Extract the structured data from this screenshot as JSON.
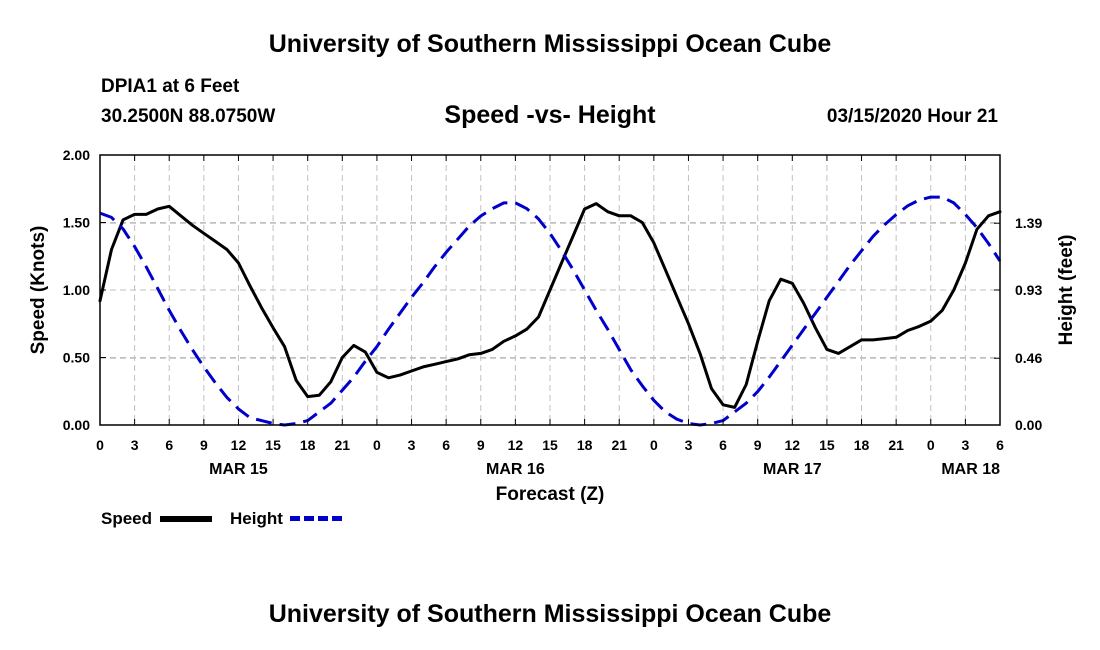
{
  "header": {
    "title": "University of Southern Mississippi Ocean Cube",
    "station": "DPIA1 at 6 Feet",
    "coords": "30.2500N 88.0750W",
    "subtitle": "Speed -vs- Height",
    "datetime": "03/15/2020 Hour 21"
  },
  "footer": {
    "title": "University of Southern Mississippi Ocean Cube"
  },
  "legend": {
    "speed_label": "Speed",
    "height_label": "Height",
    "speed_color": "#000000",
    "height_color": "#0000cc"
  },
  "chart_data": {
    "type": "line",
    "title": "Speed -vs- Height",
    "xlabel": "Forecast (Z)",
    "ylabel": "Speed (Knots)",
    "ylabel_right": "Height (feet)",
    "x_start_hour": 0,
    "x_end_hour": 78,
    "ylim": [
      0,
      2.0
    ],
    "ylim_right": [
      0,
      1.86
    ],
    "yticks": [
      "0.00",
      "0.50",
      "1.00",
      "1.50",
      "2.00"
    ],
    "yticks_right": [
      "0.00",
      "0.46",
      "0.93",
      "1.39"
    ],
    "yticks_right_values": [
      0,
      0.46,
      0.93,
      1.39
    ],
    "xtick_labels": [
      "0",
      "3",
      "6",
      "9",
      "12",
      "15",
      "18",
      "21",
      "0",
      "3",
      "6",
      "9",
      "12",
      "15",
      "18",
      "21",
      "0",
      "3",
      "6",
      "9",
      "12",
      "15",
      "18",
      "21",
      "0",
      "3",
      "6"
    ],
    "date_labels": [
      {
        "hour": 12,
        "label": "MAR 15"
      },
      {
        "hour": 36,
        "label": "MAR 16"
      },
      {
        "hour": 60,
        "label": "MAR 17"
      },
      {
        "hour": 78,
        "label": "MAR 18"
      }
    ],
    "grid": true,
    "series": [
      {
        "name": "Speed",
        "axis": "left",
        "style": "solid",
        "color": "#000000",
        "x": [
          0,
          1,
          2,
          3,
          4,
          5,
          6,
          7,
          8,
          9,
          10,
          11,
          12,
          13,
          14,
          15,
          16,
          17,
          18,
          19,
          20,
          21,
          22,
          23,
          24,
          25,
          26,
          27,
          28,
          29,
          30,
          31,
          32,
          33,
          34,
          35,
          36,
          37,
          38,
          39,
          40,
          41,
          42,
          43,
          44,
          45,
          46,
          47,
          48,
          49,
          50,
          51,
          52,
          53,
          54,
          55,
          56,
          57,
          58,
          59,
          60,
          61,
          62,
          63,
          64,
          65,
          66,
          67,
          68,
          69,
          70,
          71,
          72,
          73,
          74,
          75,
          76,
          77,
          78
        ],
        "values": [
          0.92,
          1.3,
          1.52,
          1.56,
          1.56,
          1.6,
          1.62,
          1.55,
          1.48,
          1.42,
          1.36,
          1.3,
          1.2,
          1.03,
          0.87,
          0.72,
          0.58,
          0.33,
          0.21,
          0.22,
          0.32,
          0.5,
          0.59,
          0.54,
          0.39,
          0.35,
          0.37,
          0.4,
          0.43,
          0.45,
          0.47,
          0.49,
          0.52,
          0.53,
          0.56,
          0.62,
          0.66,
          0.71,
          0.8,
          1.0,
          1.2,
          1.4,
          1.6,
          1.64,
          1.58,
          1.55,
          1.55,
          1.5,
          1.35,
          1.15,
          0.95,
          0.75,
          0.53,
          0.27,
          0.15,
          0.13,
          0.3,
          0.62,
          0.92,
          1.08,
          1.05,
          0.9,
          0.72,
          0.56,
          0.53,
          0.58,
          0.63,
          0.63,
          0.64,
          0.65,
          0.7,
          0.73,
          0.77,
          0.85,
          1.0,
          1.2,
          1.45,
          1.55,
          1.58
        ]
      },
      {
        "name": "Height",
        "axis": "right",
        "style": "dashed",
        "color": "#0000cc",
        "x": [
          0,
          1,
          2,
          3,
          4,
          5,
          6,
          7,
          8,
          9,
          10,
          11,
          12,
          13,
          14,
          15,
          16,
          17,
          18,
          19,
          20,
          21,
          22,
          23,
          24,
          25,
          26,
          27,
          28,
          29,
          30,
          31,
          32,
          33,
          34,
          35,
          36,
          37,
          38,
          39,
          40,
          41,
          42,
          43,
          44,
          45,
          46,
          47,
          48,
          49,
          50,
          51,
          52,
          53,
          54,
          55,
          56,
          57,
          58,
          59,
          60,
          61,
          62,
          63,
          64,
          65,
          66,
          67,
          68,
          69,
          70,
          71,
          72,
          73,
          74,
          75,
          76,
          77,
          78
        ],
        "values": [
          1.46,
          1.43,
          1.35,
          1.23,
          1.09,
          0.94,
          0.79,
          0.65,
          0.52,
          0.4,
          0.29,
          0.19,
          0.11,
          0.05,
          0.03,
          0.01,
          0.0,
          0.01,
          0.03,
          0.09,
          0.15,
          0.24,
          0.33,
          0.44,
          0.54,
          0.66,
          0.77,
          0.88,
          0.98,
          1.09,
          1.19,
          1.28,
          1.37,
          1.44,
          1.49,
          1.53,
          1.53,
          1.49,
          1.42,
          1.32,
          1.2,
          1.07,
          0.93,
          0.79,
          0.66,
          0.52,
          0.38,
          0.27,
          0.17,
          0.09,
          0.04,
          0.01,
          0.0,
          0.01,
          0.03,
          0.09,
          0.15,
          0.23,
          0.33,
          0.44,
          0.55,
          0.66,
          0.77,
          0.88,
          0.99,
          1.1,
          1.2,
          1.3,
          1.38,
          1.45,
          1.51,
          1.55,
          1.57,
          1.57,
          1.53,
          1.45,
          1.36,
          1.25,
          1.13
        ]
      }
    ]
  }
}
